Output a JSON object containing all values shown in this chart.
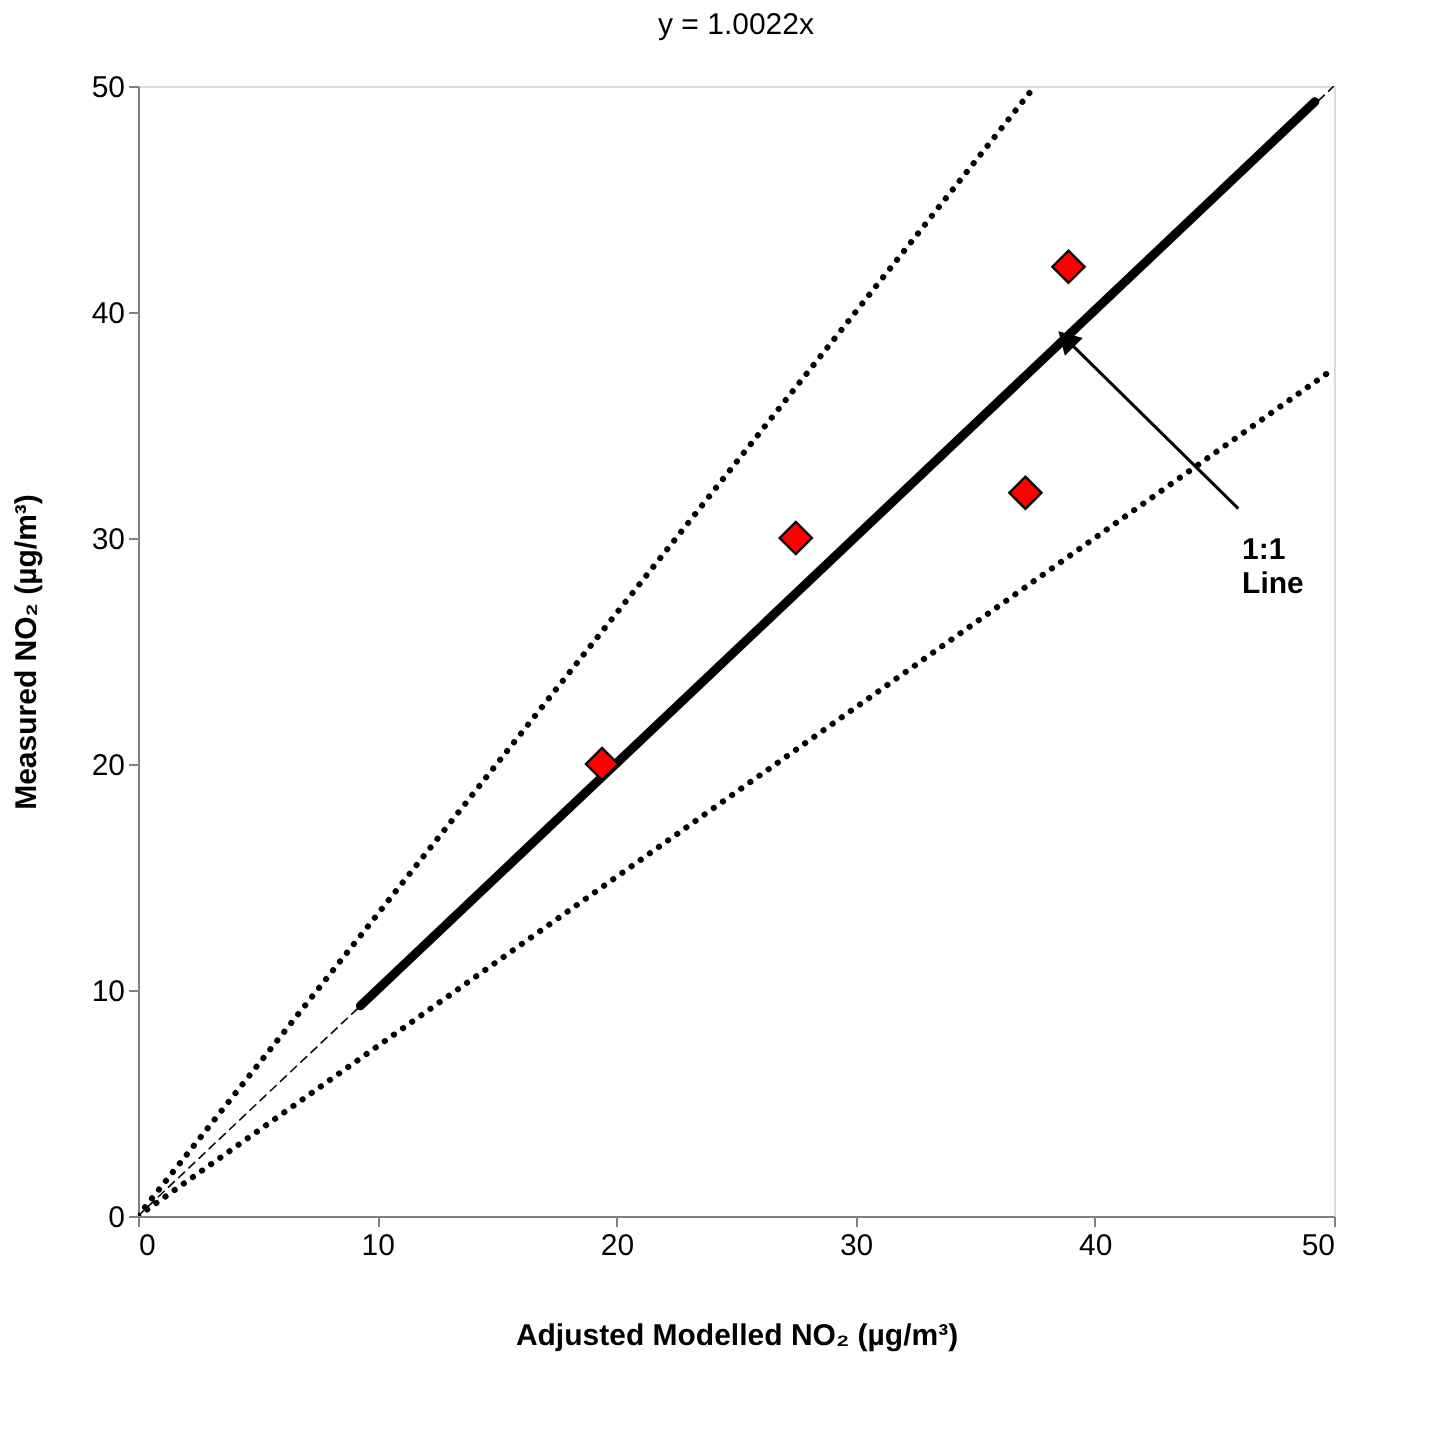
{
  "chart_data": {
    "type": "scatter",
    "title": "y = 1.0022x",
    "xlabel": "Adjusted Modelled NO₂ (µg/m³)",
    "ylabel": "Measured NO₂ (µg/m³)",
    "xlim": [
      0,
      50
    ],
    "ylim": [
      0,
      50
    ],
    "xticks": [
      0,
      10,
      20,
      30,
      40,
      50
    ],
    "yticks": [
      0,
      10,
      20,
      30,
      40,
      50
    ],
    "grid": false,
    "legend": false,
    "marker": "diamond",
    "series": [
      {
        "type": "line",
        "color": "#000000",
        "line_style": "dotted",
        "marker": "none",
        "x": [
          0,
          37.5
        ],
        "values": [
          0,
          50
        ]
      },
      {
        "type": "line",
        "color": "#000000",
        "line_style": "dotted",
        "marker": "none",
        "x": [
          0,
          50
        ],
        "values": [
          0,
          37.5
        ]
      },
      {
        "type": "line",
        "color": "#000000",
        "line_style": "dashed",
        "marker": "none",
        "x": [
          0,
          50
        ],
        "values": [
          0,
          50
        ]
      },
      {
        "type": "line",
        "color": "#000000",
        "line_style": "solid",
        "marker": "none",
        "x": [
          9.3,
          49.2
        ],
        "values": [
          9.3,
          49.3
        ]
      },
      {
        "color": "#ff0000",
        "x": [
          19.4,
          27.5,
          37.1,
          38.9
        ],
        "values": [
          20,
          30,
          32,
          42
        ]
      }
    ],
    "annotations": [
      {
        "text": "1:1 Line",
        "x": 38.8,
        "y": 38.8
      }
    ]
  }
}
